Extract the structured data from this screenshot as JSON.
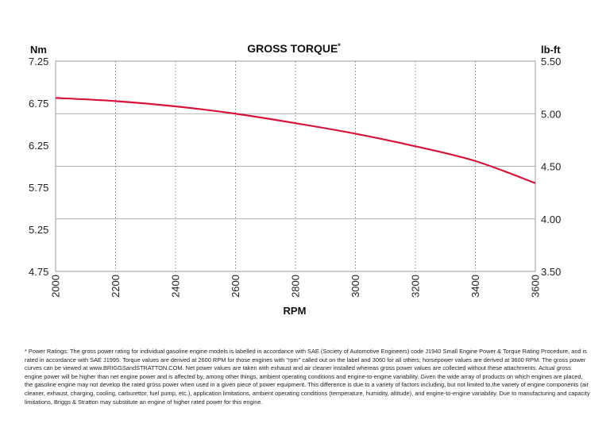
{
  "chart_data": {
    "type": "line",
    "title": "GROSS TORQUE",
    "title_mark": "*",
    "xlabel": "RPM",
    "ylabel_left": "Nm",
    "ylabel_right": "lb-ft",
    "xlim": [
      2000,
      3600
    ],
    "ylim_left": [
      4.75,
      7.25
    ],
    "ylim_right": [
      3.5,
      5.5
    ],
    "x_ticks": [
      "2000",
      "2200",
      "2400",
      "2600",
      "2800",
      "3000",
      "3200",
      "3400",
      "3600"
    ],
    "y_ticks_left": [
      "7.25",
      "6.75",
      "6.25",
      "5.75",
      "5.25",
      "4.75"
    ],
    "y_ticks_right": [
      "5.50",
      "5.00",
      "4.50",
      "4.00",
      "3.50"
    ],
    "grid": "vertical dashed, horizontal solid",
    "series": [
      {
        "color": "#d5143c",
        "axis": "right",
        "x": [
          2000,
          2200,
          2400,
          2600,
          2800,
          3000,
          3200,
          3400,
          3600
        ],
        "y": [
          5.15,
          5.12,
          5.07,
          5.0,
          4.91,
          4.81,
          4.69,
          4.55,
          4.34
        ]
      }
    ]
  },
  "footnote": "* Power Ratings: The gross power rating for individual gasoline engine models is labelled in accordance with SAE (Society of Automotive Engineers) code J1940 Small Engine Power & Torque Rating Procedure, and is rated in accordance with SAE J1995. Torque values are derived at 2600 RPM for those engines with \"rpm\" called out on the label and 3060 for all others; horsepower values are derived at 3600 RPM. The gross power curves can be viewed at www.BRIGGSandSTRATTON.COM. Net power values are taken with exhaust and air cleaner installed whereas gross power values are collected without these attachments. Actual gross engine power will be higher than net engine power and is affected by, among other things, ambient operating conditions and engine-to-engine variability. Given the wide array of products on which engines are placed, the gasoline engine may not develop the rated gross power when used in a given piece of power equipment. This difference is due to a variety of factors including, but not limited to,the variety of engine components (air cleaner, exhaust, charging, cooling, carburettor, fuel pump, etc.), application limitations, ambient operating conditions (temperature, humidity, altitude), and engine-to-engine variability. Due to manufacturing and capacity limitations, Briggs & Stratton may substitute an engine of higher rated power for this engine."
}
